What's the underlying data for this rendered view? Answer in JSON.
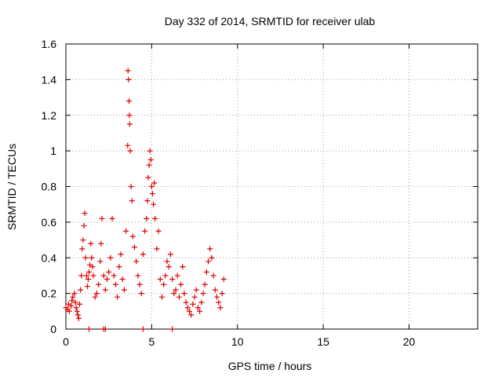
{
  "chart_data": {
    "type": "scatter",
    "title": "Day 332 of 2014, SRMTID for receiver ulab",
    "xlabel": "GPS time / hours",
    "ylabel": "SRMTID / TECUs",
    "xlim": [
      0,
      24
    ],
    "ylim": [
      0,
      1.6
    ],
    "xticks": [
      0,
      5,
      10,
      15,
      20
    ],
    "xtick_labels": [
      "0",
      "5",
      "10",
      "15",
      "20"
    ],
    "yticks": [
      0,
      0.2,
      0.4,
      0.6,
      0.8,
      1,
      1.2,
      1.4,
      1.6
    ],
    "ytick_labels": [
      "0",
      "0.2",
      "0.4",
      "0.6",
      "0.8",
      "1",
      "1.2",
      "1.4",
      "1.6"
    ],
    "grid": true,
    "marker_color": "#e00000",
    "series": [
      {
        "name": "SRMTID",
        "marker": "plus",
        "x": [
          0.0,
          0.1,
          0.15,
          0.2,
          0.3,
          0.35,
          0.4,
          0.5,
          0.55,
          0.6,
          0.65,
          0.7,
          0.75,
          0.8,
          0.85,
          0.9,
          0.95,
          1.0,
          1.05,
          1.1,
          1.15,
          1.2,
          1.25,
          1.3,
          1.35,
          1.4,
          1.45,
          1.5,
          1.55,
          1.6,
          1.7,
          1.8,
          1.9,
          2.0,
          2.05,
          2.1,
          2.2,
          2.3,
          2.4,
          2.5,
          2.6,
          2.7,
          2.8,
          2.9,
          3.0,
          3.1,
          3.2,
          3.3,
          3.4,
          3.5,
          3.6,
          3.62,
          3.65,
          3.68,
          3.7,
          3.72,
          3.75,
          3.8,
          3.85,
          3.9,
          4.0,
          4.1,
          4.2,
          4.3,
          4.4,
          4.5,
          4.6,
          4.7,
          4.75,
          4.8,
          4.85,
          4.9,
          4.95,
          5.0,
          5.05,
          5.1,
          5.15,
          5.2,
          5.3,
          5.4,
          5.5,
          5.6,
          5.7,
          5.8,
          5.9,
          6.0,
          6.1,
          6.2,
          6.3,
          6.4,
          6.5,
          6.6,
          6.7,
          6.8,
          6.9,
          7.0,
          7.1,
          7.2,
          7.3,
          7.4,
          7.5,
          7.6,
          7.7,
          7.8,
          7.9,
          8.0,
          8.1,
          8.2,
          8.3,
          8.4,
          8.5,
          8.6,
          8.7,
          8.8,
          8.9,
          9.0,
          9.1,
          9.2,
          1.35,
          2.2,
          2.3,
          4.5,
          6.2
        ],
        "y": [
          0.12,
          0.11,
          0.14,
          0.1,
          0.13,
          0.16,
          0.18,
          0.2,
          0.15,
          0.12,
          0.1,
          0.08,
          0.06,
          0.14,
          0.22,
          0.3,
          0.45,
          0.5,
          0.58,
          0.65,
          0.4,
          0.3,
          0.24,
          0.28,
          0.32,
          0.36,
          0.48,
          0.4,
          0.35,
          0.3,
          0.18,
          0.2,
          0.25,
          0.38,
          0.48,
          0.62,
          0.3,
          0.22,
          0.28,
          0.32,
          0.4,
          0.62,
          0.3,
          0.25,
          0.18,
          0.35,
          0.42,
          0.28,
          0.22,
          0.55,
          1.03,
          1.45,
          1.4,
          1.28,
          1.2,
          1.15,
          1.0,
          0.8,
          0.72,
          0.52,
          0.46,
          0.38,
          0.3,
          0.25,
          0.2,
          0.42,
          0.55,
          0.62,
          0.72,
          0.85,
          0.92,
          1.0,
          0.95,
          0.8,
          0.76,
          0.7,
          0.82,
          0.62,
          0.45,
          0.55,
          0.28,
          0.18,
          0.25,
          0.3,
          0.38,
          0.35,
          0.42,
          0.28,
          0.2,
          0.22,
          0.3,
          0.18,
          0.25,
          0.35,
          0.2,
          0.15,
          0.12,
          0.1,
          0.08,
          0.14,
          0.18,
          0.22,
          0.12,
          0.1,
          0.15,
          0.2,
          0.25,
          0.32,
          0.38,
          0.45,
          0.4,
          0.3,
          0.22,
          0.18,
          0.15,
          0.12,
          0.2,
          0.28,
          0.0,
          0.0,
          0.0,
          0.0,
          0.0
        ]
      }
    ]
  }
}
